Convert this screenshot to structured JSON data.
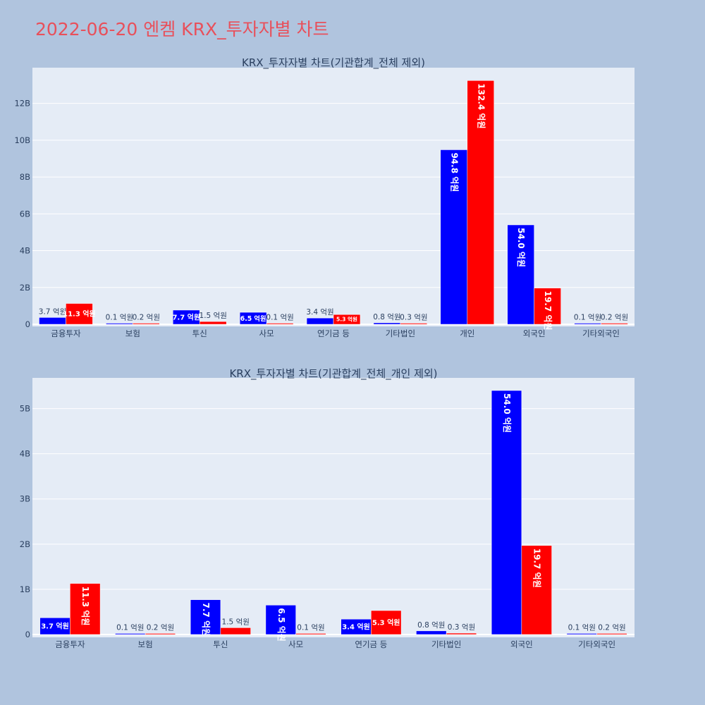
{
  "title": "2022-06-20 엔켐 KRX_투자자별 차트",
  "colors": {
    "background": "#b0c4de",
    "plot_bg": "#e5ecf6",
    "buy": "#0000ff",
    "sell": "#ff0000",
    "title": "#e8505b"
  },
  "chart_data": [
    {
      "type": "bar",
      "title": "KRX_투자자별 차트(기관합계_전체 제외)",
      "categories": [
        "금융투자",
        "보험",
        "투신",
        "사모",
        "연기금 등",
        "기타법인",
        "개인",
        "외국인",
        "기타외국인"
      ],
      "series": [
        {
          "color": "#0000ff",
          "values": [
            370000000,
            10000000,
            770000000,
            650000000,
            340000000,
            80000000,
            9480000000,
            5400000000,
            10000000
          ],
          "labels": [
            "3.7 억원",
            "0.1 억원",
            "7.7 억원",
            "6.5 억원",
            "3.4 억원",
            "0.8 억원",
            "94.8 억원",
            "54.0 억원",
            "0.1 억원"
          ]
        },
        {
          "color": "#ff0000",
          "values": [
            1130000000,
            20000000,
            150000000,
            10000000,
            530000000,
            30000000,
            13240000000,
            1970000000,
            20000000
          ],
          "labels": [
            "11.3 억원",
            "0.2 억원",
            "1.5 억원",
            "0.1 억원",
            "5.3 억원",
            "0.3 억원",
            "132.4 억원",
            "19.7 억원",
            "0.2 억원"
          ]
        }
      ],
      "yticks": [
        {
          "value": 0,
          "label": "0"
        },
        {
          "value": 2000000000,
          "label": "2B"
        },
        {
          "value": 4000000000,
          "label": "4B"
        },
        {
          "value": 6000000000,
          "label": "6B"
        },
        {
          "value": 8000000000,
          "label": "8B"
        },
        {
          "value": 10000000000,
          "label": "10B"
        },
        {
          "value": 12000000000,
          "label": "12B"
        }
      ],
      "ylim": [
        0,
        13940000000
      ],
      "grid": true
    },
    {
      "type": "bar",
      "title": "KRX_투자자별 차트(기관합계_전체_개인 제외)",
      "categories": [
        "금융투자",
        "보험",
        "투신",
        "사모",
        "연기금 등",
        "기타법인",
        "외국인",
        "기타외국인"
      ],
      "series": [
        {
          "color": "#0000ff",
          "values": [
            370000000,
            10000000,
            770000000,
            650000000,
            340000000,
            80000000,
            5400000000,
            10000000
          ],
          "labels": [
            "3.7 억원",
            "0.1 억원",
            "7.7 억원",
            "6.5 억원",
            "3.4 억원",
            "0.8 억원",
            "54.0 억원",
            "0.1 억원"
          ]
        },
        {
          "color": "#ff0000",
          "values": [
            1130000000,
            20000000,
            150000000,
            10000000,
            530000000,
            30000000,
            1970000000,
            20000000
          ],
          "labels": [
            "11.3 억원",
            "0.2 억원",
            "1.5 억원",
            "0.1 억원",
            "5.3 억원",
            "0.3 억원",
            "19.7 억원",
            "0.2 억원"
          ]
        }
      ],
      "yticks": [
        {
          "value": 0,
          "label": "0"
        },
        {
          "value": 1000000000,
          "label": "1B"
        },
        {
          "value": 2000000000,
          "label": "2B"
        },
        {
          "value": 3000000000,
          "label": "3B"
        },
        {
          "value": 4000000000,
          "label": "4B"
        },
        {
          "value": 5000000000,
          "label": "5B"
        }
      ],
      "ylim": [
        0,
        5680000000
      ],
      "grid": true
    }
  ]
}
